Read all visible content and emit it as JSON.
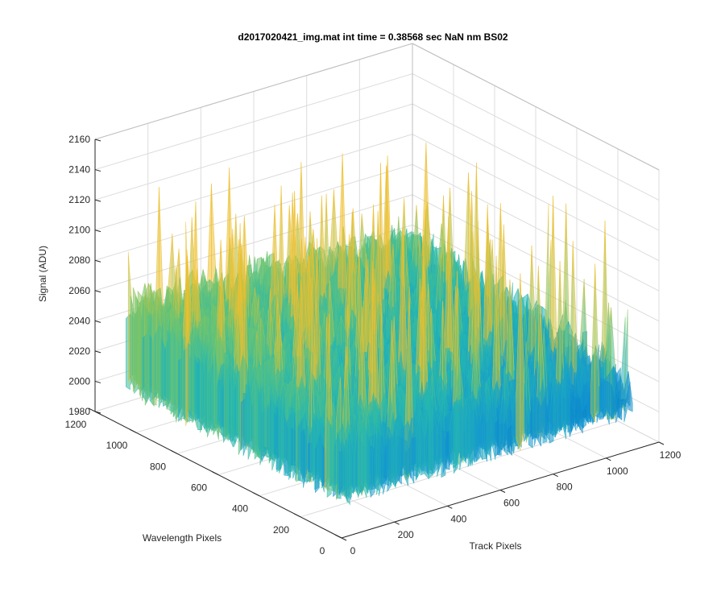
{
  "chart_data": {
    "type": "surface",
    "title": "d2017020421_img.mat int time = 0.38568 sec  NaN nm BS02",
    "xlabel": "Track Pixels",
    "ylabel": "Wavelength Pixels",
    "zlabel": "Signal (ADU)",
    "xlim": [
      0,
      1200
    ],
    "ylim": [
      0,
      1200
    ],
    "zlim": [
      1980,
      2160
    ],
    "xticks": [
      "0",
      "200",
      "400",
      "600",
      "800",
      "1000",
      "1200"
    ],
    "yticks": [
      "0",
      "200",
      "400",
      "600",
      "800",
      "1000",
      "1200"
    ],
    "zticks": [
      "1980",
      "2000",
      "2020",
      "2040",
      "2060",
      "2080",
      "2100",
      "2120",
      "2140",
      "2160"
    ],
    "grid": true,
    "colormap": "parula",
    "colors": {
      "low": "#0072bd",
      "mid": "#26b8b0",
      "high": "#eebf30"
    },
    "surface_summary": {
      "track_extent": [
        0,
        1100
      ],
      "wavelength_extent": [
        0,
        1050
      ],
      "mean_signal_high_wavelength_low_track": 2060,
      "mean_signal_low_wavelength_high_track": 2025,
      "noise_amplitude": 20,
      "max_peak": 2145,
      "min_dip": 2000
    }
  }
}
